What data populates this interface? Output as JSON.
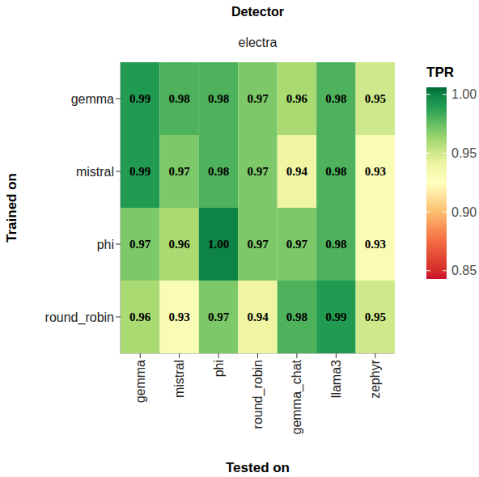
{
  "chart_data": {
    "type": "heatmap",
    "title": "Detector",
    "subtitle": "electra",
    "x_label": "Tested on",
    "y_label": "Trained on",
    "x_categories": [
      "gemma",
      "mistral",
      "phi",
      "round_robin",
      "gemma_chat",
      "llama3",
      "zephyr"
    ],
    "y_categories": [
      "gemma",
      "mistral",
      "phi",
      "round_robin"
    ],
    "values": [
      [
        0.99,
        0.98,
        0.98,
        0.97,
        0.96,
        0.98,
        0.95
      ],
      [
        0.99,
        0.97,
        0.98,
        0.97,
        0.94,
        0.98,
        0.93
      ],
      [
        0.97,
        0.96,
        1.0,
        0.97,
        0.97,
        0.98,
        0.93
      ],
      [
        0.96,
        0.93,
        0.97,
        0.94,
        0.98,
        0.99,
        0.95
      ]
    ],
    "value_labels": [
      [
        "0.99",
        "0.98",
        "0.98",
        "0.97",
        "0.96",
        "0.98",
        "0.95"
      ],
      [
        "0.99",
        "0.97",
        "0.98",
        "0.97",
        "0.94",
        "0.98",
        "0.93"
      ],
      [
        "0.97",
        "0.96",
        "1.00",
        "0.97",
        "0.97",
        "0.98",
        "0.93"
      ],
      [
        "0.96",
        "0.93",
        "0.97",
        "0.94",
        "0.98",
        "0.99",
        "0.95"
      ]
    ],
    "data_labels": true,
    "colorbar": {
      "title": "TPR",
      "range": [
        0.843,
        1.006
      ],
      "ticks": [
        0.85,
        {
          "value": 0.9,
          "label": "0.90"
        },
        0.95,
        {
          "value": 1,
          "label": "1.00"
        }
      ]
    }
  }
}
